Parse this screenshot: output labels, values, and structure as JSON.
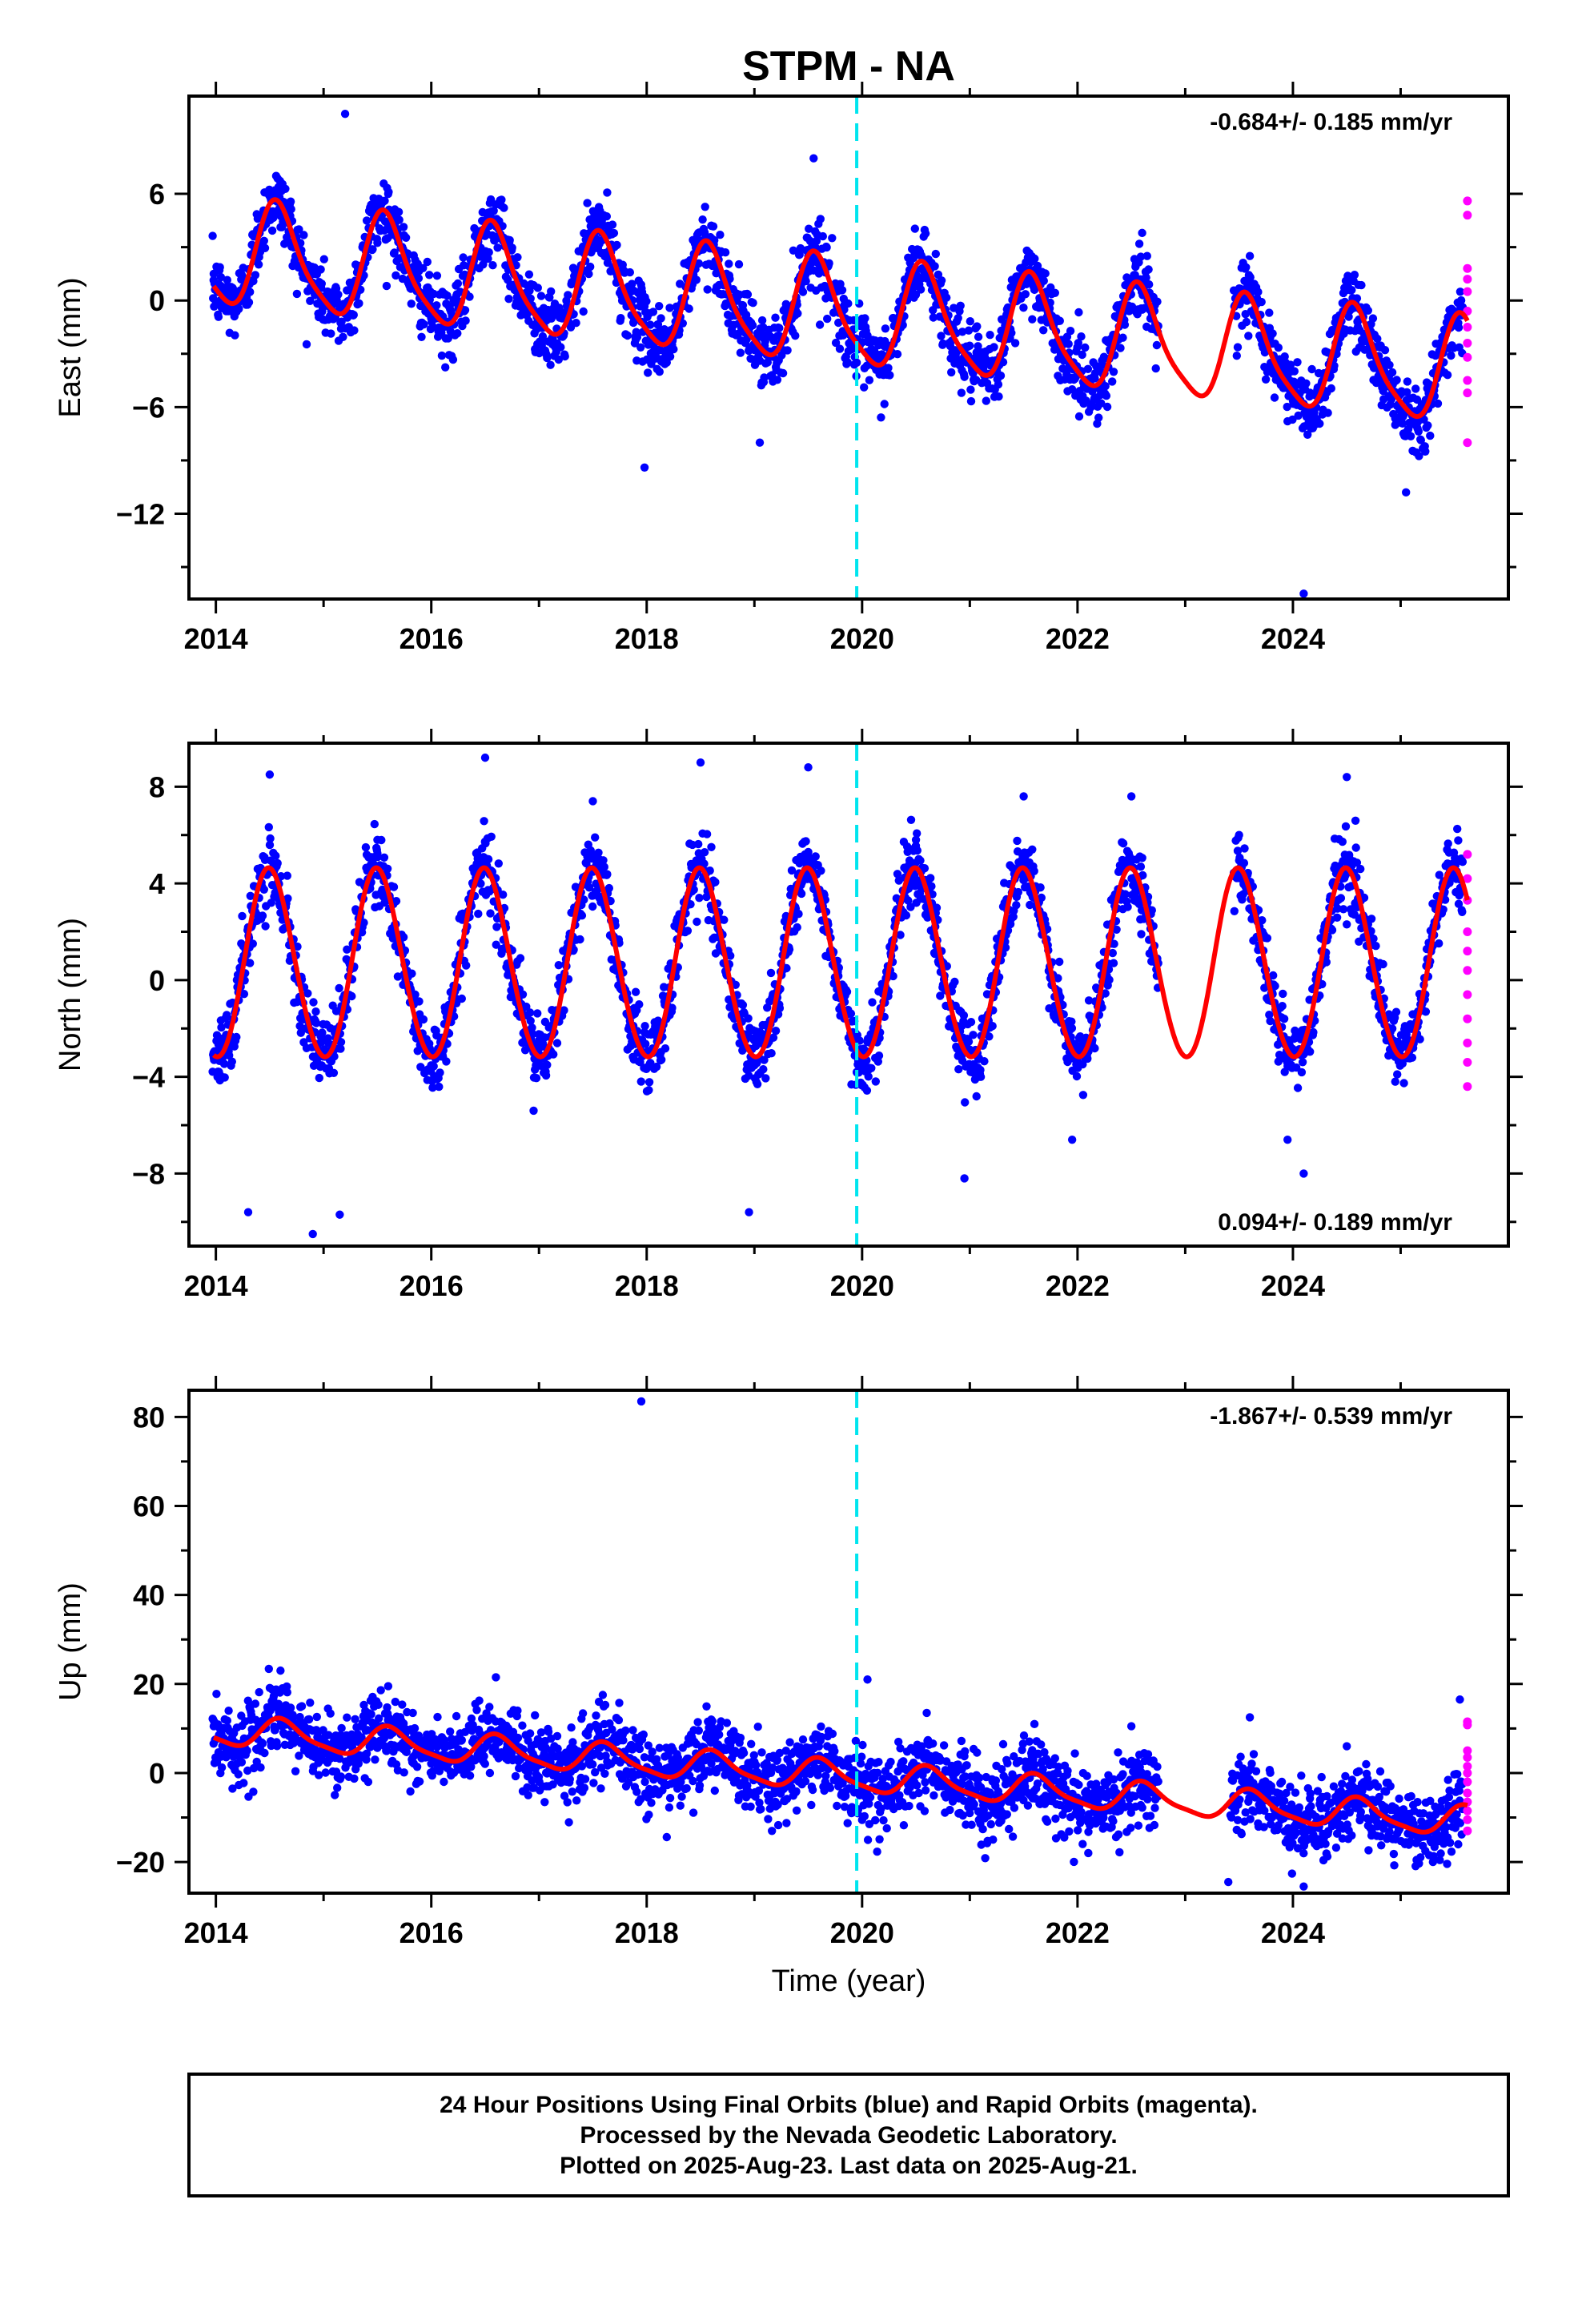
{
  "chart_data": {
    "title": "STPM - NA",
    "xlabel": "Time (year)",
    "xlim": [
      2013.75,
      2026.0
    ],
    "xticks": [
      2014,
      2016,
      2018,
      2020,
      2022,
      2024
    ],
    "event_line_x": 2019.95,
    "colors": {
      "final": "#0000ff",
      "rapid": "#ff00ff",
      "model": "#ff0000",
      "event": "#00e5ee"
    },
    "panels": [
      {
        "id": "east",
        "type": "scatter",
        "ylabel": "East (mm)",
        "ylim": [
          -16.8,
          11.5
        ],
        "yticks": [
          6,
          0,
          -6,
          -12
        ],
        "rate_text": "-0.684+/- 0.185 mm/yr",
        "rate_position": "top-right",
        "model": {
          "trend_start": [
            2014.0,
            2.6
          ],
          "trend_end": [
            2025.6,
            -4.1
          ],
          "annual_amp": 2.9,
          "annual_phase_peak": 0.58,
          "semi_amp": 0.6
        },
        "sample_points": [
          [
            2013.98,
            1.5
          ],
          [
            2014.55,
            6.2
          ],
          [
            2014.9,
            1.0
          ],
          [
            2015.2,
            10.5
          ],
          [
            2015.6,
            6.0
          ],
          [
            2015.95,
            0.3
          ],
          [
            2016.6,
            5.4
          ],
          [
            2016.95,
            -0.5
          ],
          [
            2017.6,
            4.8
          ],
          [
            2017.95,
            -1.2
          ],
          [
            2017.98,
            -9.4
          ],
          [
            2018.6,
            4.2
          ],
          [
            2018.95,
            -1.8
          ],
          [
            2019.05,
            -8.0
          ],
          [
            2019.55,
            8.0
          ],
          [
            2019.95,
            -3.5
          ],
          [
            2020.6,
            1.5
          ],
          [
            2020.95,
            -4.3
          ],
          [
            2021.6,
            0.6
          ],
          [
            2021.95,
            -5.0
          ],
          [
            2022.6,
            3.8
          ],
          [
            2023.6,
            2.5
          ],
          [
            2023.95,
            -6.8
          ],
          [
            2024.1,
            -16.5
          ],
          [
            2024.6,
            -1.2
          ],
          [
            2024.95,
            -7.0
          ],
          [
            2025.05,
            -10.8
          ]
        ],
        "rapid_points": [
          [
            2025.62,
            5.6
          ],
          [
            2025.62,
            4.8
          ],
          [
            2025.62,
            1.8
          ],
          [
            2025.62,
            1.2
          ],
          [
            2025.62,
            0.5
          ],
          [
            2025.62,
            -0.6
          ],
          [
            2025.62,
            -1.5
          ],
          [
            2025.62,
            -2.4
          ],
          [
            2025.62,
            -3.2
          ],
          [
            2025.62,
            -4.5
          ],
          [
            2025.62,
            -5.2
          ],
          [
            2025.62,
            -8.0
          ]
        ]
      },
      {
        "id": "north",
        "type": "scatter",
        "ylabel": "North (mm)",
        "ylim": [
          -11.0,
          9.8
        ],
        "yticks": [
          8,
          4,
          0,
          -4,
          -8
        ],
        "rate_text": "0.094+/- 0.189 mm/yr",
        "rate_position": "bottom-right",
        "model": {
          "trend_start": [
            2014.0,
            0.6
          ],
          "trend_end": [
            2025.6,
            0.6
          ],
          "annual_amp": 3.9,
          "annual_phase_peak": 0.5,
          "semi_amp": 0.2
        },
        "sample_points": [
          [
            2013.98,
            -3.2
          ],
          [
            2014.3,
            -9.6
          ],
          [
            2014.5,
            8.5
          ],
          [
            2014.9,
            -10.5
          ],
          [
            2015.15,
            -9.7
          ],
          [
            2015.5,
            5.8
          ],
          [
            2016.5,
            9.2
          ],
          [
            2016.95,
            -5.4
          ],
          [
            2017.5,
            7.4
          ],
          [
            2018.5,
            9.0
          ],
          [
            2018.95,
            -9.6
          ],
          [
            2019.5,
            8.8
          ],
          [
            2019.95,
            -3.8
          ],
          [
            2020.5,
            5.8
          ],
          [
            2020.95,
            -8.2
          ],
          [
            2021.5,
            7.6
          ],
          [
            2021.95,
            -6.6
          ],
          [
            2022.5,
            7.6
          ],
          [
            2023.5,
            6.0
          ],
          [
            2023.95,
            -6.6
          ],
          [
            2024.1,
            -8.0
          ],
          [
            2024.5,
            8.4
          ],
          [
            2024.95,
            -4.2
          ]
        ],
        "rapid_points": [
          [
            2025.62,
            5.2
          ],
          [
            2025.62,
            4.2
          ],
          [
            2025.62,
            3.3
          ],
          [
            2025.62,
            2.0
          ],
          [
            2025.62,
            1.2
          ],
          [
            2025.62,
            0.4
          ],
          [
            2025.62,
            -0.6
          ],
          [
            2025.62,
            -1.6
          ],
          [
            2025.62,
            -2.6
          ],
          [
            2025.62,
            -3.4
          ],
          [
            2025.62,
            -4.4
          ]
        ]
      },
      {
        "id": "up",
        "type": "scatter",
        "ylabel": "Up (mm)",
        "ylim": [
          -27.0,
          86.0
        ],
        "yticks": [
          80,
          60,
          40,
          20,
          0,
          -20
        ],
        "rate_text": "-1.867+/- 0.539 mm/yr",
        "rate_position": "top-right",
        "model": {
          "trend_start": [
            2014.0,
            9.5
          ],
          "trend_end": [
            2025.6,
            -11.0
          ],
          "annual_amp": 3.2,
          "annual_phase_peak": 0.62,
          "semi_amp": 0.8
        },
        "sample_points": [
          [
            2013.98,
            10.5
          ],
          [
            2014.6,
            23.0
          ],
          [
            2015.3,
            2.0
          ],
          [
            2015.6,
            19.5
          ],
          [
            2016.6,
            21.5
          ],
          [
            2016.9,
            -5.0
          ],
          [
            2017.95,
            83.5
          ],
          [
            2018.6,
            12.0
          ],
          [
            2019.5,
            5.0
          ],
          [
            2020.05,
            21.0
          ],
          [
            2020.6,
            13.5
          ],
          [
            2021.6,
            11.0
          ],
          [
            2022.1,
            -18.0
          ],
          [
            2022.5,
            10.5
          ],
          [
            2023.4,
            -24.5
          ],
          [
            2023.6,
            12.5
          ],
          [
            2024.1,
            -25.5
          ],
          [
            2024.5,
            6.0
          ],
          [
            2025.3,
            -20.0
          ],
          [
            2025.55,
            16.5
          ]
        ],
        "rapid_points": [
          [
            2025.62,
            11.5
          ],
          [
            2025.62,
            10.8
          ],
          [
            2025.62,
            5.0
          ],
          [
            2025.62,
            3.5
          ],
          [
            2025.62,
            1.5
          ],
          [
            2025.62,
            0.0
          ],
          [
            2025.62,
            -2.0
          ],
          [
            2025.62,
            -4.5
          ],
          [
            2025.62,
            -6.5
          ],
          [
            2025.62,
            -8.5
          ],
          [
            2025.62,
            -10.5
          ],
          [
            2025.62,
            -13.0
          ]
        ]
      }
    ]
  },
  "footer": {
    "line1": "24 Hour Positions Using Final Orbits (blue) and Rapid Orbits (magenta).",
    "line2": "Processed by the Nevada Geodetic Laboratory.",
    "line3": "Plotted on 2025-Aug-23. Last data on 2025-Aug-21."
  }
}
